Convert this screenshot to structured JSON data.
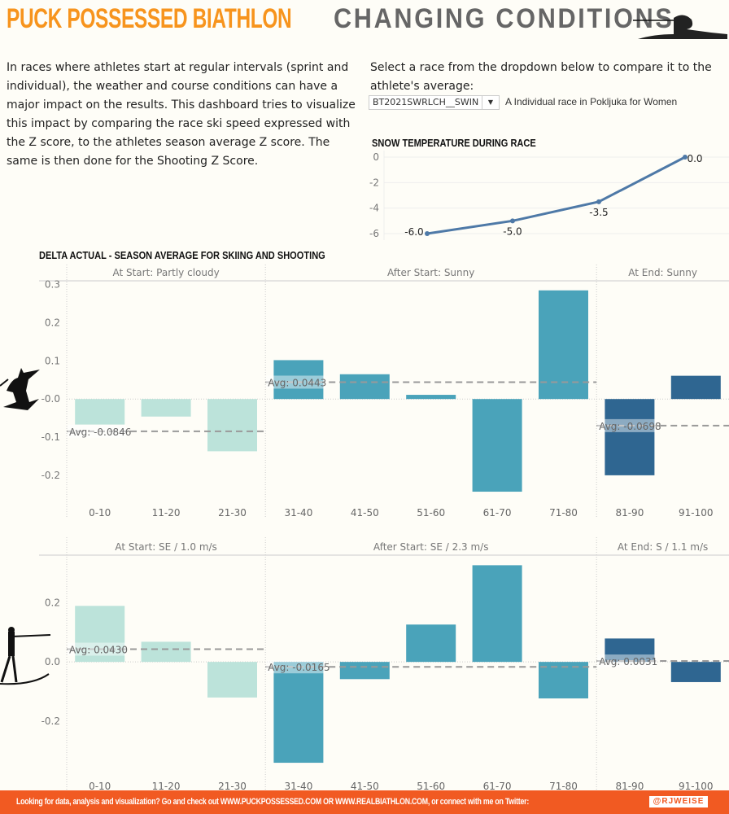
{
  "header": {
    "title_left": "PUCK POSSESSED BIATHLON",
    "title_right": "CHANGING CONDITIONS"
  },
  "intro": "In races where athletes start at regular intervals (sprint and individual), the weather and course conditions can have a major impact on the results. This dashboard tries to visualize this impact by comparing the race ski speed expressed with the Z score, to the athletes season average Z score. The same is then done for the Shooting Z Score.",
  "selector": {
    "prompt": "Select a race from the dropdown below to compare it to the athlete's average:",
    "value": "BT2021SWRLCH__SWIN",
    "description": "A Individual race in Pokljuka for Women"
  },
  "footer": {
    "text": "Looking for data, analysis and visualization? Go and check out WWW.PUCKPOSSESSED.COM OR WWW.REALBIATHLON.COM, or connect with me on Twitter:",
    "twitter": "@RJWEISE"
  },
  "section_title": "DELTA ACTUAL - SEASON AVERAGE FOR SKIING AND SHOOTING",
  "colors": {
    "start": "#bce3da",
    "after": "#4aa3ba",
    "end": "#2f6691",
    "line": "#4e79a7"
  },
  "chart_data": [
    {
      "type": "line",
      "title": "SNOW TEMPERATURE DURING RACE",
      "x": [
        1,
        2,
        3,
        4
      ],
      "values": [
        -6.0,
        -5.0,
        -3.5,
        0.0
      ],
      "labels": [
        "-6.0",
        "-5.0",
        "-3.5",
        "0.0"
      ],
      "yticks": [
        "0",
        "-2",
        "-4",
        "-6"
      ],
      "ylim": [
        -6,
        0
      ],
      "grid": true
    },
    {
      "type": "bar",
      "categories": [
        "0-10",
        "11-20",
        "21-30",
        "31-40",
        "41-50",
        "51-60",
        "61-70",
        "71-80",
        "81-90",
        "91-100"
      ],
      "values": [
        -0.067,
        -0.046,
        -0.137,
        0.102,
        0.065,
        0.011,
        -0.243,
        0.285,
        -0.2,
        0.061
      ],
      "groups": [
        {
          "label": "At Start: Partly cloudy",
          "avg": -0.0846,
          "avg_label": "Avg: -0.0846"
        },
        {
          "label": "After Start: Sunny",
          "avg": 0.0443,
          "avg_label": "Avg: 0.0443"
        },
        {
          "label": "At End: Sunny",
          "avg": -0.0698,
          "avg_label": "Avg: -0.0698"
        }
      ],
      "yticks": [
        "0.3",
        "0.2",
        "0.1",
        "-0.0",
        "-0.1",
        "-0.2"
      ],
      "ylim": [
        -0.26,
        0.31
      ]
    },
    {
      "type": "bar",
      "categories": [
        "0-10",
        "11-20",
        "21-30",
        "31-40",
        "41-50",
        "51-60",
        "61-70",
        "71-80",
        "81-90",
        "91-100"
      ],
      "values": [
        0.189,
        0.068,
        -0.12,
        -0.34,
        -0.058,
        0.126,
        0.326,
        -0.123,
        0.079,
        -0.068
      ],
      "groups": [
        {
          "label": "At Start: SE / 1.0 m/s",
          "avg": 0.043,
          "avg_label": "Avg: 0.0430"
        },
        {
          "label": "After Start: SE / 2.3 m/s",
          "avg": -0.0165,
          "avg_label": "Avg: -0.0165"
        },
        {
          "label": "At End: S / 1.1 m/s",
          "avg": 0.0031,
          "avg_label": "Avg: 0.0031"
        }
      ],
      "yticks": [
        "0.2",
        "0.0",
        "-0.2"
      ],
      "ylim": [
        -0.37,
        0.36
      ]
    }
  ]
}
